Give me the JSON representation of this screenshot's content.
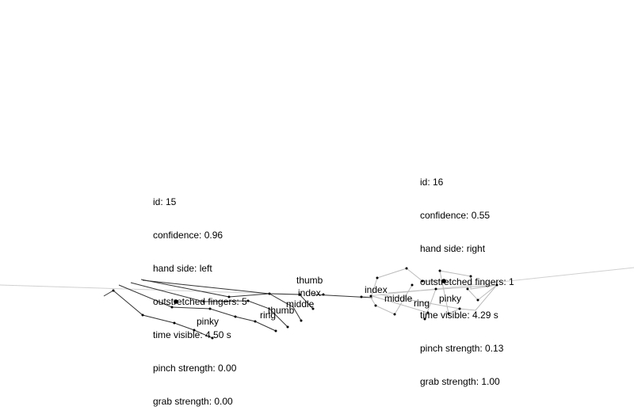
{
  "hands": [
    {
      "id_line": "id: 15",
      "confidence_line": "confidence: 0.96",
      "hand_side_line": "hand side: left",
      "outstretched_line": "outstretched fingers: 5",
      "time_visible_line": "time visible: 4.50 s",
      "pinch_line": "pinch strength: 0.00",
      "grab_line": "grab strength: 0.00",
      "finger_labels": {
        "thumb": "thumb",
        "index": "index",
        "middle": "middle",
        "ring": "ring",
        "pinky": "pinky"
      },
      "second_thumb_label": "thumb"
    },
    {
      "id_line": "id: 16",
      "confidence_line": "confidence: 0.55",
      "hand_side_line": "hand side: right",
      "outstretched_line": "outstretched fingers: 1",
      "time_visible_line": "time visible: 4.29 s",
      "pinch_line": "pinch strength: 0.13",
      "grab_line": "grab strength: 1.00",
      "finger_labels": {
        "index": "index",
        "middle": "middle",
        "ring": "ring",
        "pinky": "pinky"
      }
    }
  ],
  "colors": {
    "left_bones": "#333333",
    "right_bones": "#bbbbbb",
    "floor_line": "#d0d0d0",
    "joint": "#000000"
  }
}
